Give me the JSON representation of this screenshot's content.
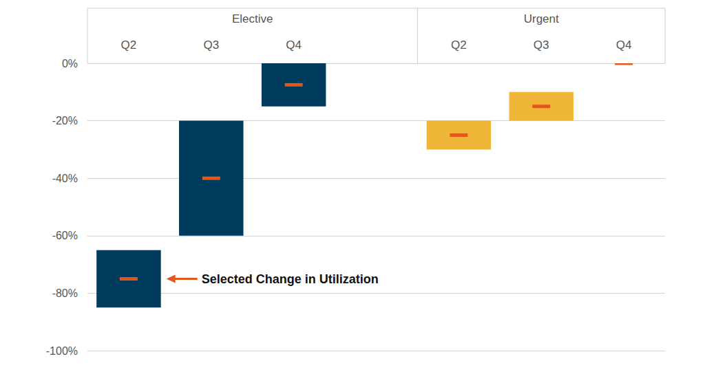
{
  "chart_data": {
    "type": "range_bar",
    "groups": [
      {
        "name": "Elective",
        "color": "#003a5c",
        "categories": [
          "Q2",
          "Q3",
          "Q4"
        ],
        "low": [
          -85,
          -60,
          -15
        ],
        "high": [
          -65,
          -20,
          0
        ],
        "selected": [
          -75,
          -40,
          -7.5
        ]
      },
      {
        "name": "Urgent",
        "color": "#f0b637",
        "categories": [
          "Q2",
          "Q3",
          "Q4"
        ],
        "low": [
          -30,
          -20,
          0
        ],
        "high": [
          -20,
          -10,
          0
        ],
        "selected": [
          -25,
          -15,
          0
        ]
      }
    ],
    "annotation": {
      "text": "Selected Change in Utilization",
      "group": "Elective",
      "category": "Q2"
    },
    "ylim": [
      -100,
      0
    ],
    "yticks": [
      {
        "value": -100,
        "label": "-100%"
      },
      {
        "value": -80,
        "label": "-80%"
      },
      {
        "value": -60,
        "label": "-60%"
      },
      {
        "value": -40,
        "label": "-40%"
      },
      {
        "value": -20,
        "label": "-20%"
      },
      {
        "value": 0,
        "label": "0%"
      }
    ],
    "grid": true
  }
}
